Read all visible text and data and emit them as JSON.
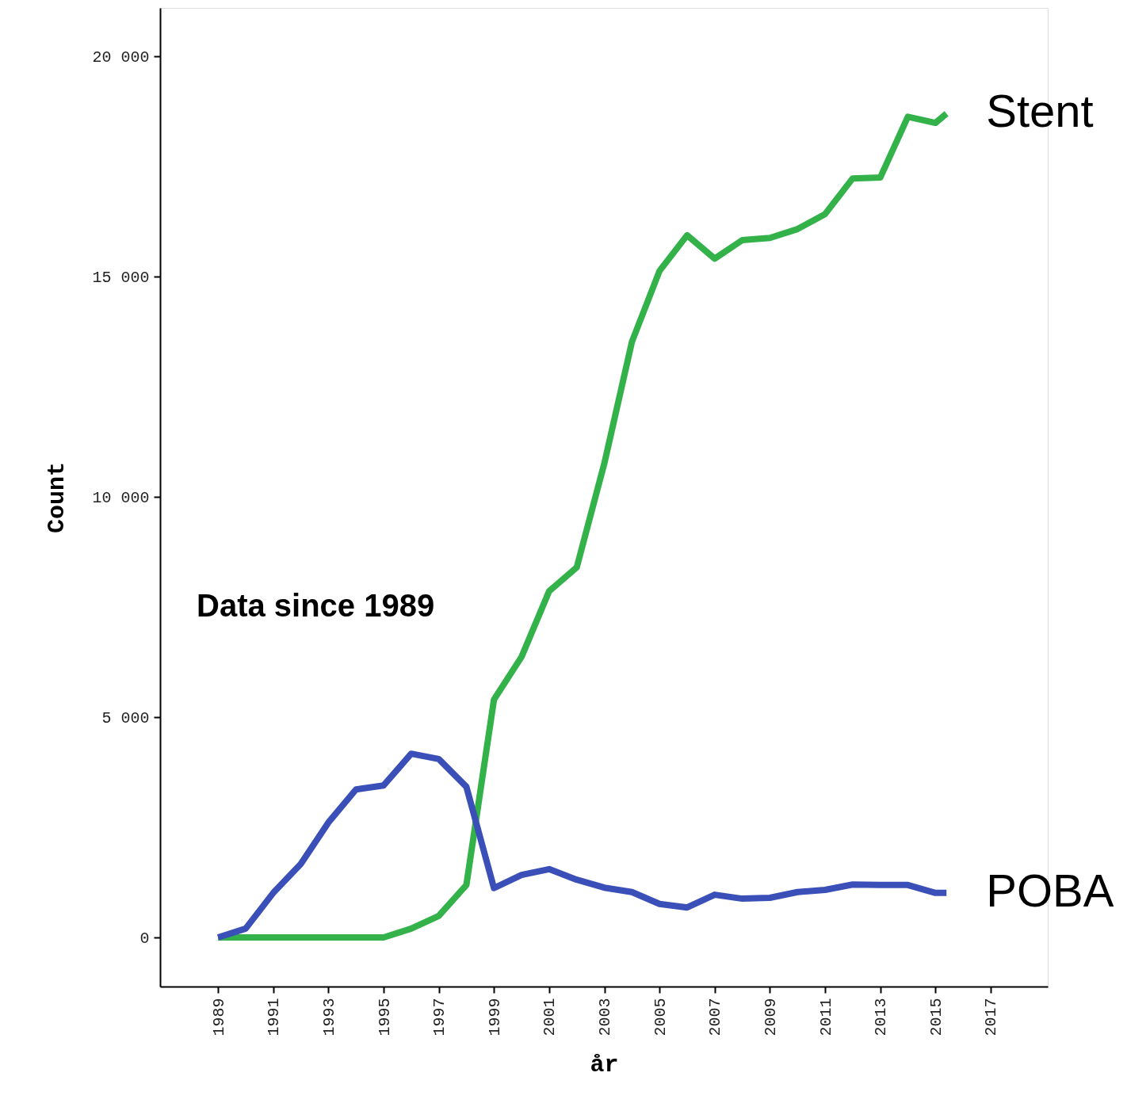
{
  "chart_data": {
    "type": "line",
    "xlabel": "år",
    "ylabel": "Count",
    "x": [
      1989,
      1990,
      1991,
      1992,
      1993,
      1994,
      1995,
      1996,
      1997,
      1998,
      1999,
      2000,
      2001,
      2002,
      2003,
      2004,
      2005,
      2006,
      2007,
      2008,
      2009,
      2010,
      2011,
      2012,
      2013,
      2014,
      2015,
      2015.4
    ],
    "series": [
      {
        "name": "Stent",
        "color": "#33b24a",
        "values": [
          0,
          0,
          0,
          0,
          0,
          0,
          0,
          200,
          490,
          1190,
          5400,
          6370,
          7860,
          8400,
          10760,
          13520,
          15130,
          15940,
          15410,
          15830,
          15880,
          16080,
          16420,
          17230,
          17250,
          18630,
          18490,
          18700
        ]
      },
      {
        "name": "POBA",
        "color": "#3a4fb8",
        "values": [
          0,
          200,
          1010,
          1670,
          2610,
          3360,
          3450,
          4170,
          4050,
          3420,
          1120,
          1420,
          1550,
          1310,
          1130,
          1030,
          760,
          680,
          970,
          880,
          900,
          1030,
          1080,
          1200,
          1190,
          1190,
          1010,
          1010
        ]
      }
    ],
    "xlim": [
      1986.9,
      2019.07
    ],
    "xticks": [
      1989,
      1991,
      1993,
      1995,
      1997,
      1999,
      2001,
      2003,
      2005,
      2007,
      2009,
      2011,
      2013,
      2015,
      2017
    ],
    "ylim": [
      -1115,
      21100
    ],
    "yticks": [
      {
        "value": 0,
        "label": "0"
      },
      {
        "value": 5000,
        "label": "5 000"
      },
      {
        "value": 10000,
        "label": "10 000"
      },
      {
        "value": 15000,
        "label": "15 000"
      },
      {
        "value": 20000,
        "label": "20 000"
      }
    ],
    "annotations": [
      "Data since 1989"
    ],
    "grid": false,
    "marker": "none",
    "line_style": "solid"
  }
}
